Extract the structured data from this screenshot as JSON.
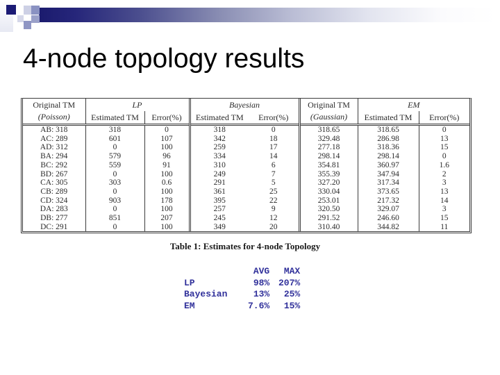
{
  "slide": {
    "title": "4-node topology results",
    "caption": "Table 1: Estimates for 4-node Topology"
  },
  "results_table": {
    "group_headers": {
      "lp": "LP",
      "bayesian": "Bayesian",
      "em": "EM"
    },
    "headers": {
      "original_tm": "Original TM",
      "poisson": "(Poisson)",
      "gaussian": "(Gaussian)",
      "estimated_tm": "Estimated TM",
      "error_pct": "Error(%)"
    },
    "rows": [
      [
        "AB: 318",
        "318",
        "0",
        "318",
        "0",
        "318.65",
        "318.65",
        "0"
      ],
      [
        "AC: 289",
        "601",
        "107",
        "342",
        "18",
        "329.48",
        "286.98",
        "13"
      ],
      [
        "AD: 312",
        "0",
        "100",
        "259",
        "17",
        "277.18",
        "318.36",
        "15"
      ],
      [
        "BA: 294",
        "579",
        "96",
        "334",
        "14",
        "298.14",
        "298.14",
        "0"
      ],
      [
        "BC: 292",
        "559",
        "91",
        "310",
        "6",
        "354.81",
        "360.97",
        "1.6"
      ],
      [
        "BD: 267",
        "0",
        "100",
        "249",
        "7",
        "355.39",
        "347.94",
        "2"
      ],
      [
        "CA: 305",
        "303",
        "0.6",
        "291",
        "5",
        "327.20",
        "317.34",
        "3"
      ],
      [
        "CB: 289",
        "0",
        "100",
        "361",
        "25",
        "330.04",
        "373.65",
        "13"
      ],
      [
        "CD: 324",
        "903",
        "178",
        "395",
        "22",
        "253.01",
        "217.32",
        "14"
      ],
      [
        "DA: 283",
        "0",
        "100",
        "257",
        "9",
        "320.50",
        "329.07",
        "3"
      ],
      [
        "DB: 277",
        "851",
        "207",
        "245",
        "12",
        "291.52",
        "246.60",
        "15"
      ],
      [
        "DC: 291",
        "0",
        "100",
        "349",
        "20",
        "310.40",
        "344.82",
        "11"
      ]
    ]
  },
  "summary_table": {
    "col_headers": [
      "AVG",
      "MAX"
    ],
    "rows": [
      {
        "label": "LP",
        "avg": "98%",
        "max": "207%"
      },
      {
        "label": "Bayesian",
        "avg": "13%",
        "max": "25%"
      },
      {
        "label": "EM",
        "avg": "7.6%",
        "max": "15%"
      }
    ]
  },
  "colors": {
    "bar_navy": "#1b1b6e",
    "pixel_square_navy": "#1b1b75",
    "summary_text": "#31319b",
    "table_border": "#3b3b3b"
  }
}
